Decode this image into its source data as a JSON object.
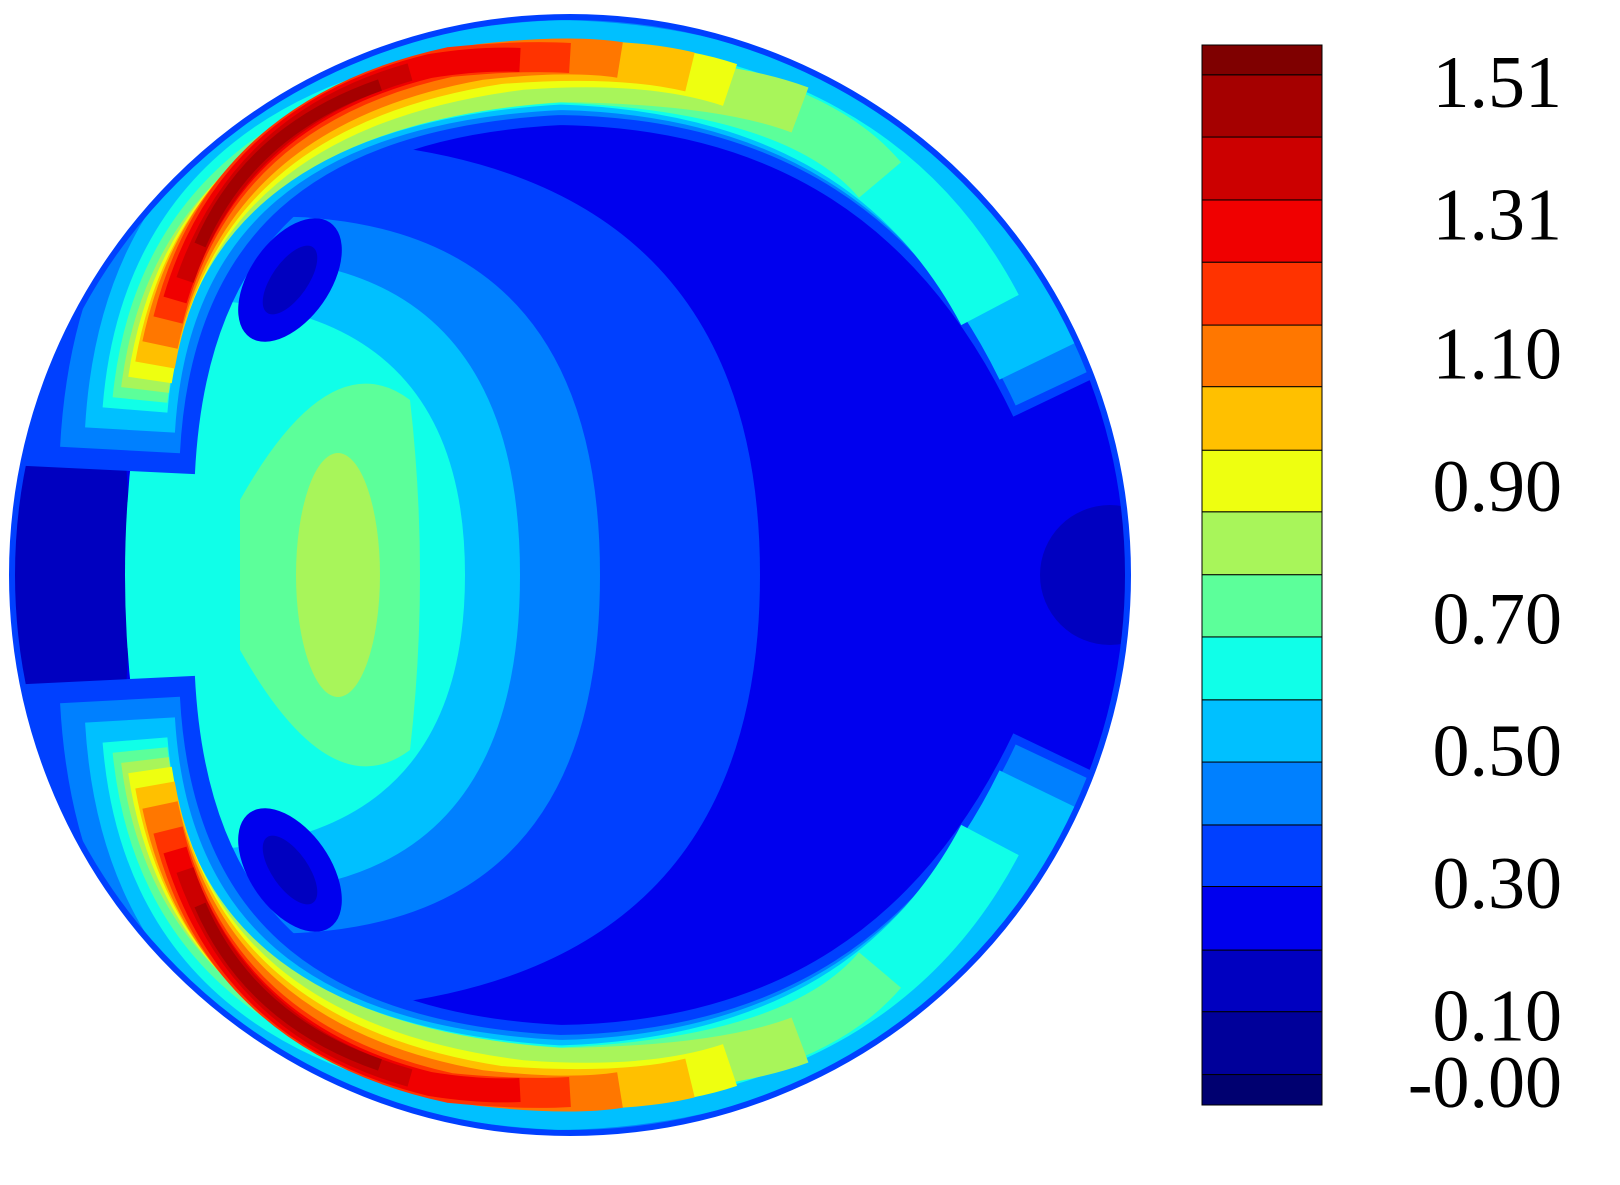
{
  "chart_data": {
    "type": "contour",
    "colorbar": {
      "clim": [
        -0.023,
        1.578
      ],
      "levels": [
        -0.023,
        0.023,
        0.118,
        0.211,
        0.307,
        0.4,
        0.495,
        0.589,
        0.684,
        0.778,
        0.873,
        0.966,
        1.062,
        1.155,
        1.25,
        1.344,
        1.439,
        1.533,
        1.578
      ],
      "colors": [
        "#000070",
        "#00009a",
        "#0000c0",
        "#0000ee",
        "#0040ff",
        "#0080ff",
        "#00c0ff",
        "#10ffe8",
        "#5cff9a",
        "#a8f55a",
        "#eeff10",
        "#ffc000",
        "#ff7700",
        "#ff3300",
        "#f00000",
        "#cc0000",
        "#a50000",
        "#7f0000"
      ],
      "ticks": [
        {
          "value": 0,
          "label": "-0.00"
        },
        {
          "value": 0.1,
          "label": "0.10"
        },
        {
          "value": 0.3,
          "label": "0.30"
        },
        {
          "value": 0.5,
          "label": "0.50"
        },
        {
          "value": 0.7,
          "label": "0.70"
        },
        {
          "value": 0.9,
          "label": "0.90"
        },
        {
          "value": 1.1,
          "label": "1.10"
        },
        1.31,
        1.51
      ]
    }
  }
}
